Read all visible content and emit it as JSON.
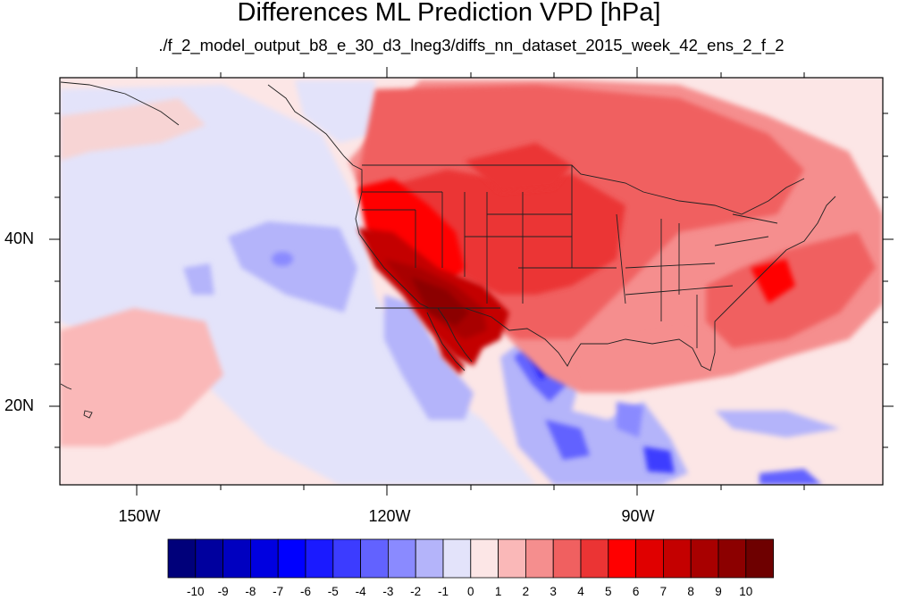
{
  "title": "Differences ML Prediction VPD [hPa]",
  "subtitle": "./f_2_model_output_b8_e_30_d3_lneg3/diffs_nn_dataset_2015_week_42_ens_2_f_2",
  "lon_ticks": [
    "150W",
    "120W",
    "90W"
  ],
  "lat_ticks": [
    "40N",
    "20N"
  ],
  "colorbar": {
    "labels": [
      "-10",
      "-9",
      "-8",
      "-7",
      "-6",
      "-5",
      "-4",
      "-3",
      "-2",
      "-1",
      "0",
      "1",
      "2",
      "3",
      "4",
      "5",
      "6",
      "7",
      "8",
      "9",
      "10"
    ],
    "colors": [
      "#00007a",
      "#00009e",
      "#0000c0",
      "#0000e0",
      "#0000ff",
      "#1a1aff",
      "#3c3cff",
      "#6262ff",
      "#8a8aff",
      "#b4b4fa",
      "#e3e3fa",
      "#fce6e6",
      "#fab8b8",
      "#f58e8e",
      "#f06060",
      "#eb3434",
      "#ff0000",
      "#e00000",
      "#c40000",
      "#a80000",
      "#8c0000",
      "#6e0000"
    ]
  }
}
